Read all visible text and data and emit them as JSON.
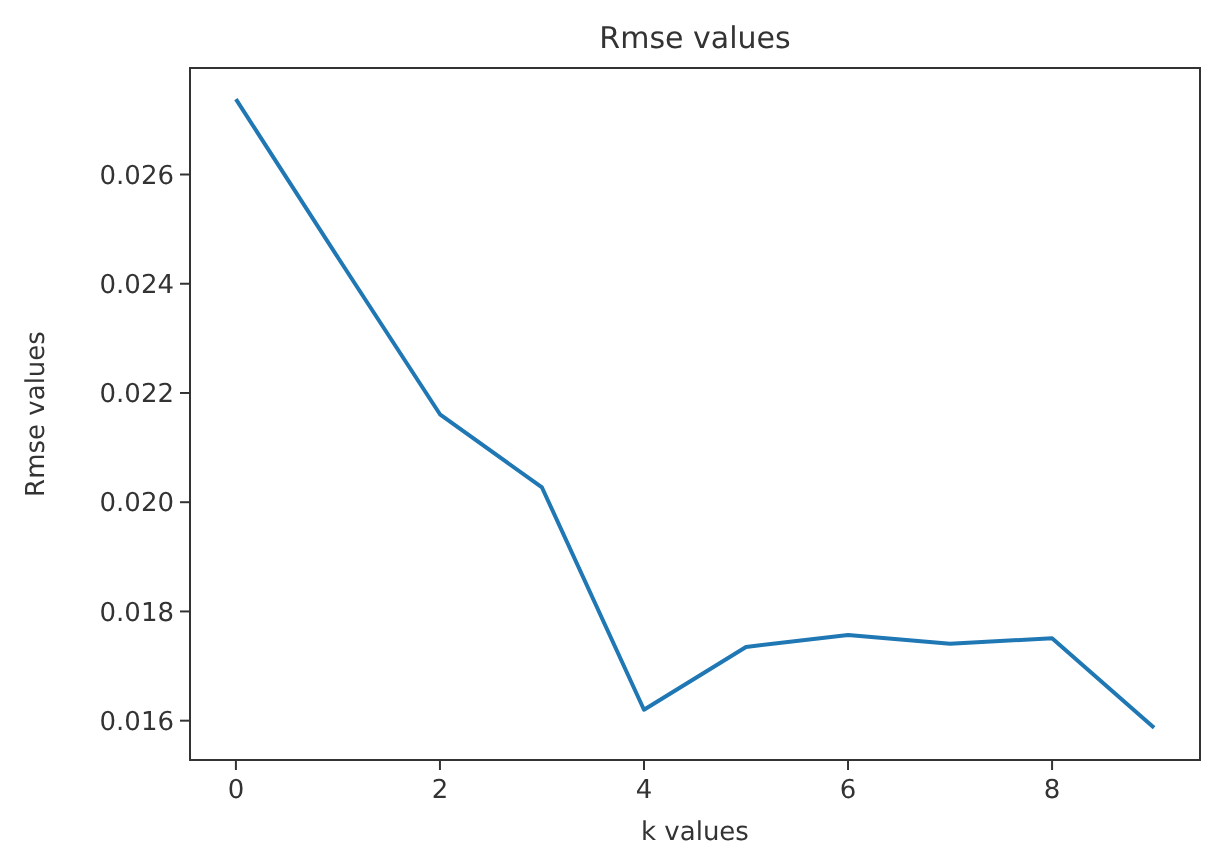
{
  "chart_data": {
    "type": "line",
    "title": "Rmse values",
    "xlabel": "k values",
    "ylabel": "Rmse values",
    "x": [
      0,
      1,
      2,
      3,
      4,
      5,
      6,
      7,
      8,
      9
    ],
    "series": [
      {
        "color": "#1f77b4",
        "values": [
          0.02738,
          0.02448,
          0.02161,
          0.02027,
          0.0162,
          0.01735,
          0.01757,
          0.01741,
          0.01751,
          0.01587
        ]
      }
    ],
    "xlim": [
      -0.45,
      9.45
    ],
    "ylim": [
      0.01528,
      0.02795
    ],
    "xticks": [
      0,
      2,
      4,
      6,
      8
    ],
    "yticks": [
      0.016,
      0.018,
      {
        "value": 0.02,
        "label": "0.020"
      },
      0.022,
      0.024,
      0.026
    ],
    "grid": false
  }
}
